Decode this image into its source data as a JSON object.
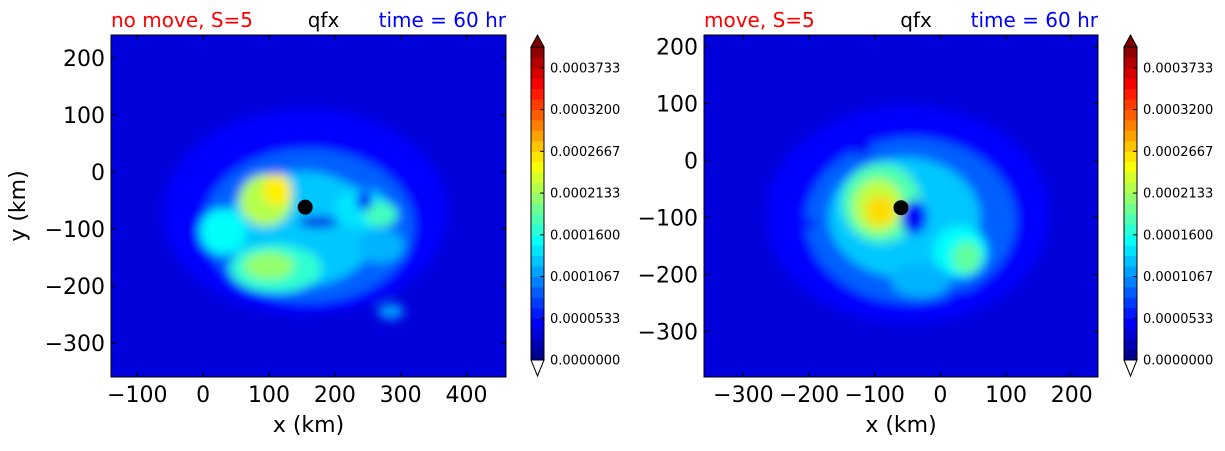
{
  "chart_data": [
    {
      "type": "heatmap",
      "variable": "qfx",
      "case_label": "no move, S=5",
      "case_color": "#ff0000",
      "time_label": "time = 60 hr",
      "time_color": "#0000ff",
      "xlabel": "x (km)",
      "ylabel": "y (km)",
      "xlim": [
        -140,
        460
      ],
      "ylim": [
        -360,
        240
      ],
      "xticks": [
        -100,
        0,
        100,
        200,
        300,
        400
      ],
      "xtick_labels": [
        "−100",
        "0",
        "100",
        "200",
        "300",
        "400"
      ],
      "yticks": [
        -300,
        -200,
        -100,
        0,
        100,
        200
      ],
      "ytick_labels": [
        "−300",
        "−200",
        "−100",
        "0",
        "100",
        "200"
      ],
      "center_marker": {
        "x": 155,
        "y": -62
      },
      "features": [
        {
          "x": 155,
          "y": -70,
          "rx": 215,
          "ry": 180,
          "level": 0.13
        },
        {
          "x": 160,
          "y": -95,
          "rx": 160,
          "ry": 135,
          "level": 0.22
        },
        {
          "x": 150,
          "y": -100,
          "rx": 115,
          "ry": 100,
          "level": 0.32
        },
        {
          "x": 95,
          "y": -50,
          "rx": 40,
          "ry": 45,
          "level": 0.55
        },
        {
          "x": 112,
          "y": -32,
          "rx": 22,
          "ry": 28,
          "level": 0.64
        },
        {
          "x": 110,
          "y": -170,
          "rx": 70,
          "ry": 42,
          "level": 0.42
        },
        {
          "x": 100,
          "y": -165,
          "rx": 38,
          "ry": 24,
          "level": 0.52
        },
        {
          "x": 30,
          "y": -105,
          "rx": 35,
          "ry": 40,
          "level": 0.38
        },
        {
          "x": 240,
          "y": -65,
          "rx": 40,
          "ry": 35,
          "level": 0.35
        },
        {
          "x": 270,
          "y": -75,
          "rx": 25,
          "ry": 22,
          "level": 0.44
        },
        {
          "x": 270,
          "y": -130,
          "rx": 35,
          "ry": 30,
          "level": 0.3
        },
        {
          "x": 285,
          "y": -245,
          "rx": 20,
          "ry": 14,
          "level": 0.28
        },
        {
          "x": 175,
          "y": -88,
          "rx": 30,
          "ry": 10,
          "level": 0.1
        },
        {
          "x": 245,
          "y": -50,
          "rx": 12,
          "ry": 18,
          "level": 0.12
        }
      ],
      "colorbar": {
        "min": 0.0,
        "max": 0.0004,
        "levels": 30,
        "tick_values": [
          0.0,
          5.33e-05,
          0.0001067,
          0.00016,
          0.0002133,
          0.0002667,
          0.00032,
          0.0003733
        ],
        "tick_labels": [
          "0.0000000",
          "0.0000533",
          "0.0001067",
          "0.0001600",
          "0.0002133",
          "0.0002667",
          "0.0003200",
          "0.0003733"
        ],
        "extend": "both"
      }
    },
    {
      "type": "heatmap",
      "variable": "qfx",
      "case_label": "move, S=5",
      "case_color": "#ff0000",
      "time_label": "time = 60 hr",
      "time_color": "#0000ff",
      "xlabel": "x (km)",
      "ylabel": "",
      "xlim": [
        -360,
        240
      ],
      "ylim": [
        -380,
        220
      ],
      "xticks": [
        -300,
        -200,
        -100,
        0,
        100,
        200
      ],
      "xtick_labels": [
        "−300",
        "−200",
        "−100",
        "0",
        "100",
        "200"
      ],
      "yticks": [
        -300,
        -200,
        -100,
        0,
        100,
        200
      ],
      "ytick_labels": [
        "−300",
        "−200",
        "−100",
        "0",
        "100",
        "200"
      ],
      "center_marker": {
        "x": -60,
        "y": -83
      },
      "features": [
        {
          "x": -50,
          "y": -95,
          "rx": 215,
          "ry": 190,
          "level": 0.13
        },
        {
          "x": -45,
          "y": -105,
          "rx": 160,
          "ry": 145,
          "level": 0.22
        },
        {
          "x": -55,
          "y": -100,
          "rx": 115,
          "ry": 105,
          "level": 0.32
        },
        {
          "x": -90,
          "y": -75,
          "rx": 60,
          "ry": 70,
          "level": 0.45
        },
        {
          "x": -95,
          "y": -80,
          "rx": 38,
          "ry": 48,
          "level": 0.56
        },
        {
          "x": -92,
          "y": -88,
          "rx": 22,
          "ry": 26,
          "level": 0.66
        },
        {
          "x": 30,
          "y": -160,
          "rx": 40,
          "ry": 45,
          "level": 0.38
        },
        {
          "x": 40,
          "y": -170,
          "rx": 22,
          "ry": 28,
          "level": 0.47
        },
        {
          "x": -30,
          "y": -210,
          "rx": 45,
          "ry": 30,
          "level": 0.3
        },
        {
          "x": -40,
          "y": -100,
          "rx": 20,
          "ry": 30,
          "level": 0.12
        },
        {
          "x": -120,
          "y": 20,
          "rx": 15,
          "ry": 10,
          "level": 0.11
        },
        {
          "x": 30,
          "y": -240,
          "rx": 18,
          "ry": 12,
          "level": 0.13
        },
        {
          "x": -200,
          "y": -110,
          "rx": 10,
          "ry": 8,
          "level": 0.12
        }
      ],
      "colorbar": {
        "min": 0.0,
        "max": 0.0004,
        "levels": 30,
        "tick_values": [
          0.0,
          5.33e-05,
          0.0001067,
          0.00016,
          0.0002133,
          0.0002667,
          0.00032,
          0.0003733
        ],
        "tick_labels": [
          "0.0000000",
          "0.0000533",
          "0.0001067",
          "0.0001600",
          "0.0002133",
          "0.0002667",
          "0.0003200",
          "0.0003733"
        ],
        "extend": "both"
      }
    }
  ]
}
